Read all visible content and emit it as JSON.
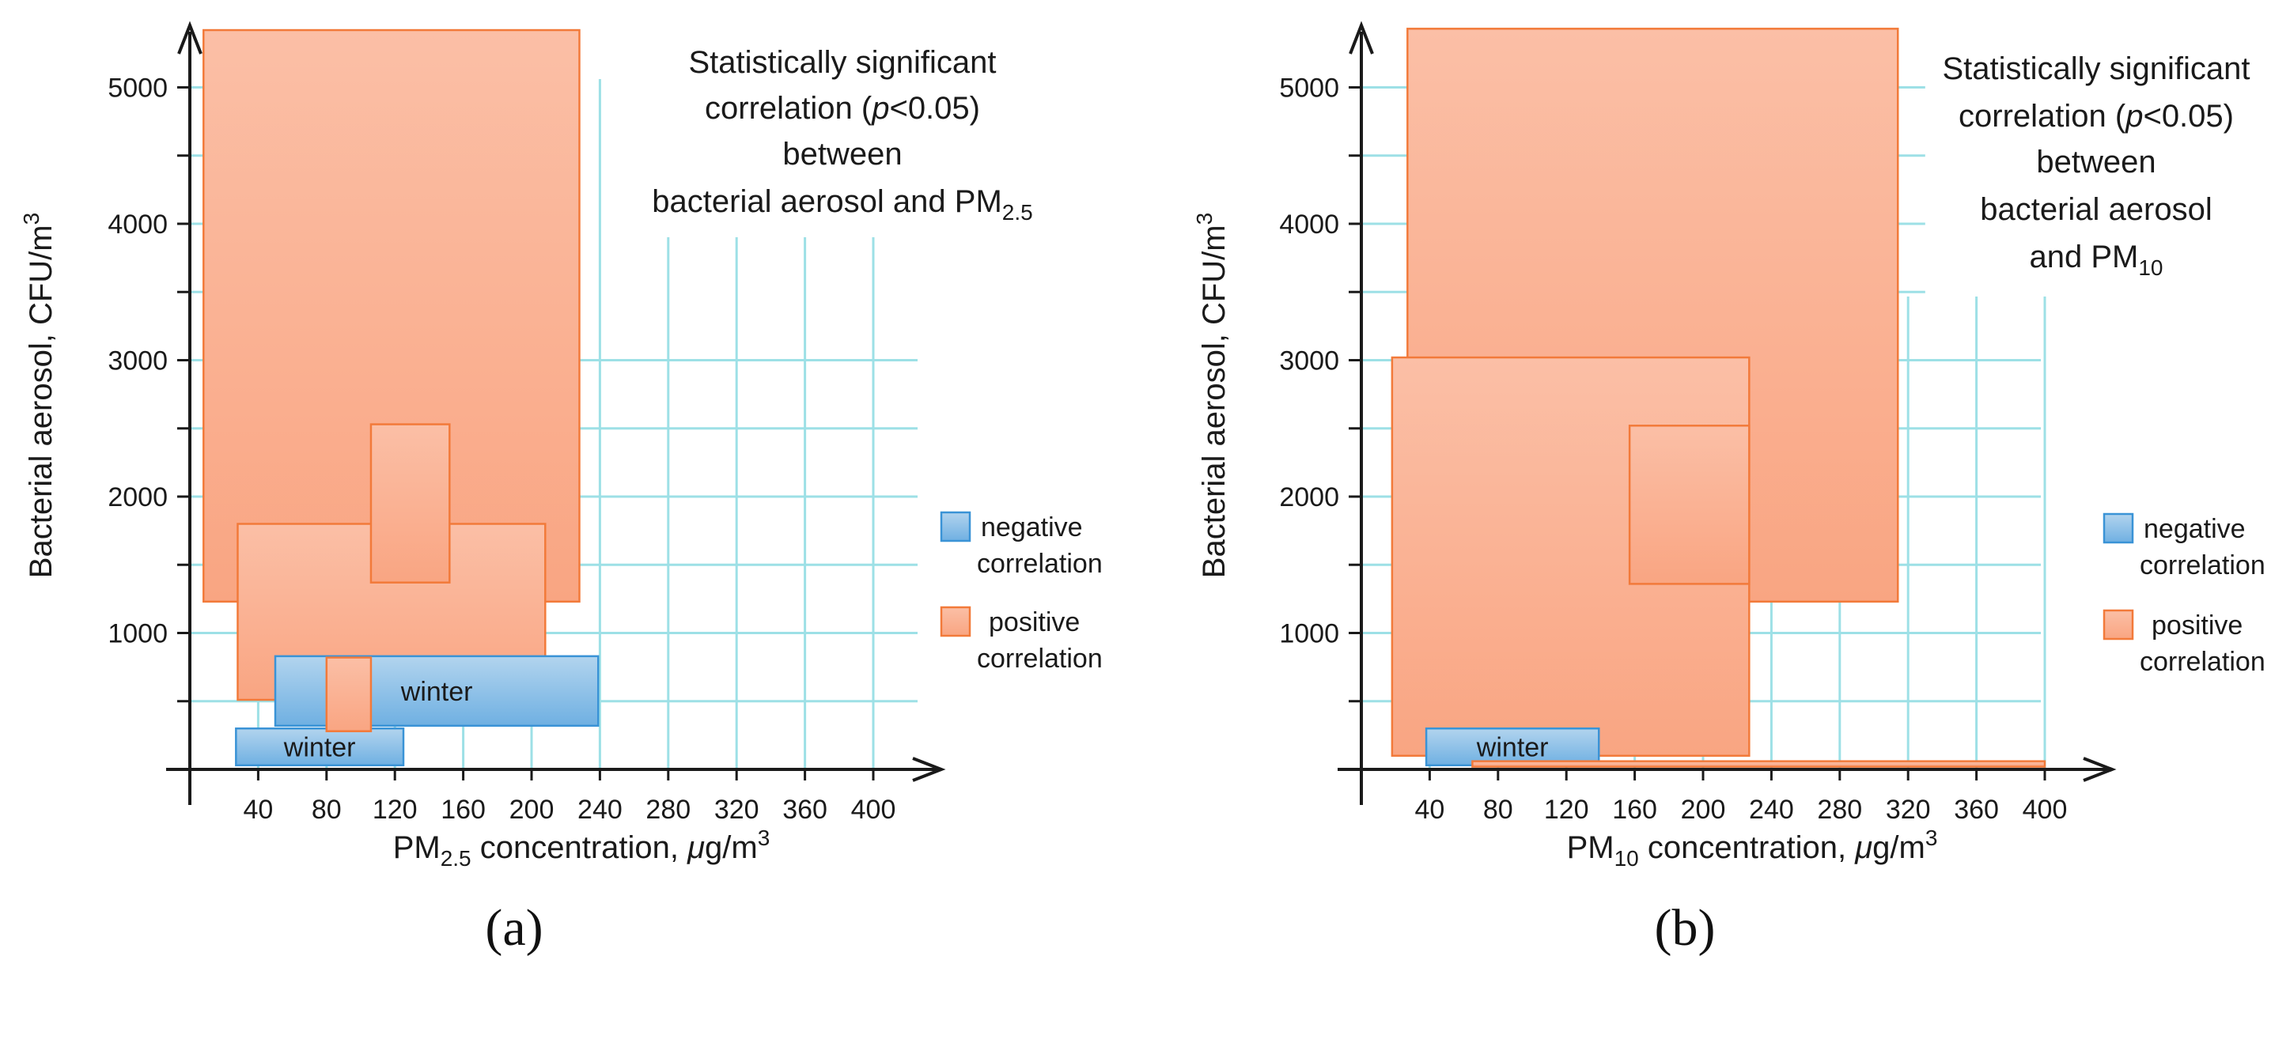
{
  "chart_data": [
    {
      "panel": "(a)",
      "type": "box-ranges",
      "x_label_parts": [
        "PM",
        "2.5",
        " concentration, ",
        "μ",
        "g/m",
        "3"
      ],
      "y_label_parts": [
        "Bacterial aerosol, CFU/m",
        "3"
      ],
      "xlim": [
        0,
        420
      ],
      "ylim": [
        0,
        5500
      ],
      "x_ticks": [
        "40",
        "80",
        "120",
        "160",
        "200",
        "240",
        "280",
        "320",
        "360",
        "400"
      ],
      "y_ticks": [
        "1000",
        "2000",
        "3000",
        "4000",
        "5000"
      ],
      "annotation_lines": [
        "Statistically significant",
        "correlation (p<0.05)",
        "between",
        "bacterial aerosol and PM2.5"
      ],
      "legend": {
        "negative": "negative correlation",
        "positive": "positive correlation"
      },
      "ranges": [
        {
          "kind": "positive",
          "x": [
            8,
            228
          ],
          "y": [
            1230,
            5420
          ],
          "label": ""
        },
        {
          "kind": "positive",
          "x": [
            28,
            208
          ],
          "y": [
            510,
            1800
          ],
          "label": ""
        },
        {
          "kind": "positive",
          "x": [
            106,
            152
          ],
          "y": [
            1370,
            2530
          ],
          "label": ""
        },
        {
          "kind": "negative",
          "x": [
            50,
            239
          ],
          "y": [
            320,
            830
          ],
          "label": "winter"
        },
        {
          "kind": "negative",
          "x": [
            27,
            125
          ],
          "y": [
            30,
            300
          ],
          "label": "winter"
        },
        {
          "kind": "positive",
          "x": [
            80,
            106
          ],
          "y": [
            280,
            820
          ],
          "label": ""
        }
      ]
    },
    {
      "panel": "(b)",
      "type": "box-ranges",
      "x_label_parts": [
        "PM",
        "10",
        " concentration, ",
        "μ",
        "g/m",
        "3"
      ],
      "y_label_parts": [
        "Bacterial aerosol, CFU/m",
        "3"
      ],
      "xlim": [
        0,
        420
      ],
      "ylim": [
        0,
        5500
      ],
      "x_ticks": [
        "40",
        "80",
        "120",
        "160",
        "200",
        "240",
        "280",
        "320",
        "360",
        "400"
      ],
      "y_ticks": [
        "1000",
        "2000",
        "3000",
        "4000",
        "5000"
      ],
      "annotation_lines": [
        "Statistically significant",
        "correlation (p<0.05)",
        "between",
        "bacterial aerosol",
        "and PM10"
      ],
      "legend": {
        "negative": "negative correlation",
        "positive": "positive correlation"
      },
      "ranges": [
        {
          "kind": "positive",
          "x": [
            27,
            314
          ],
          "y": [
            1230,
            5430
          ],
          "label": ""
        },
        {
          "kind": "positive",
          "x": [
            18,
            227
          ],
          "y": [
            100,
            3020
          ],
          "label": ""
        },
        {
          "kind": "positive",
          "x": [
            157,
            227
          ],
          "y": [
            1360,
            2520
          ],
          "label": ""
        },
        {
          "kind": "negative",
          "x": [
            38,
            139
          ],
          "y": [
            30,
            300
          ],
          "label": "winter"
        },
        {
          "kind": "positive",
          "x": [
            65,
            400
          ],
          "y": [
            20,
            60
          ],
          "label": ""
        }
      ]
    }
  ],
  "colors": {
    "positive_fill_top": "#fbbfa6",
    "positive_fill_bottom": "#f9a582",
    "positive_stroke": "#f27a3a",
    "negative_fill_top": "#b2d4ee",
    "negative_fill_bottom": "#6fb0e2",
    "negative_stroke": "#3a93d6",
    "grid": "#9de0e6",
    "axis": "#1a1a1a"
  }
}
